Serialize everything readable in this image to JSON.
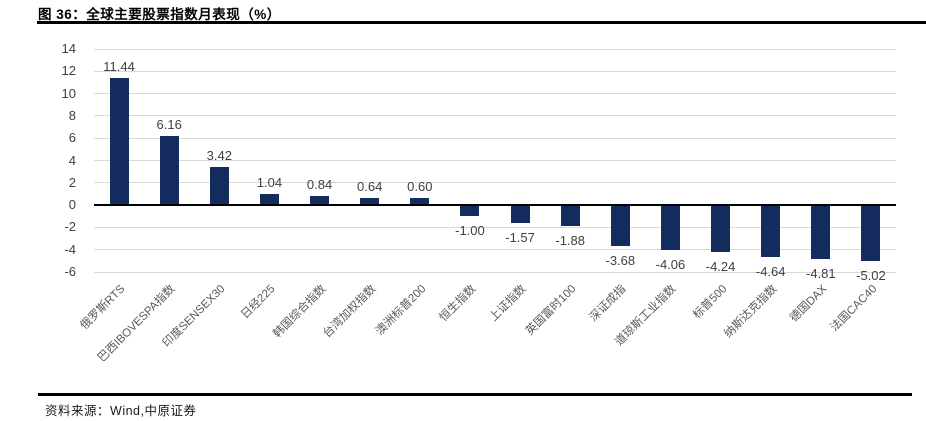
{
  "header": {
    "figure_label": "图 36：",
    "figure_title": "全球主要股票指数月表现（%）"
  },
  "footer": {
    "source_label": "资料来源：",
    "source_text": "Wind,中原证券"
  },
  "chart_data": {
    "type": "bar",
    "title": "全球主要股票指数月表现（%）",
    "xlabel": "",
    "ylabel": "",
    "categories": [
      "俄罗斯RTS",
      "巴西IBOVESPA指数",
      "印度SENSEX30",
      "日经225",
      "韩国综合指数",
      "台湾加权指数",
      "澳洲标普200",
      "恒生指数",
      "上证指数",
      "英国富时100",
      "深证成指",
      "道琼斯工业指数",
      "标普500",
      "纳斯达克指数",
      "德国DAX",
      "法国CAC40"
    ],
    "values": [
      11.44,
      6.16,
      3.42,
      1.04,
      0.84,
      0.64,
      0.6,
      -1.0,
      -1.57,
      -1.88,
      -3.68,
      -4.06,
      -4.24,
      -4.64,
      -4.81,
      -5.02
    ],
    "ylim": [
      -6,
      14
    ],
    "ytick_step": 2,
    "grid": true,
    "legend": false,
    "bar_color": "#142b5e",
    "gridline_color": "#d9d9d9",
    "axis_color": "#000000",
    "tick_label_color": "#404040",
    "value_label_color": "#404040",
    "category_label_color": "#595959"
  }
}
